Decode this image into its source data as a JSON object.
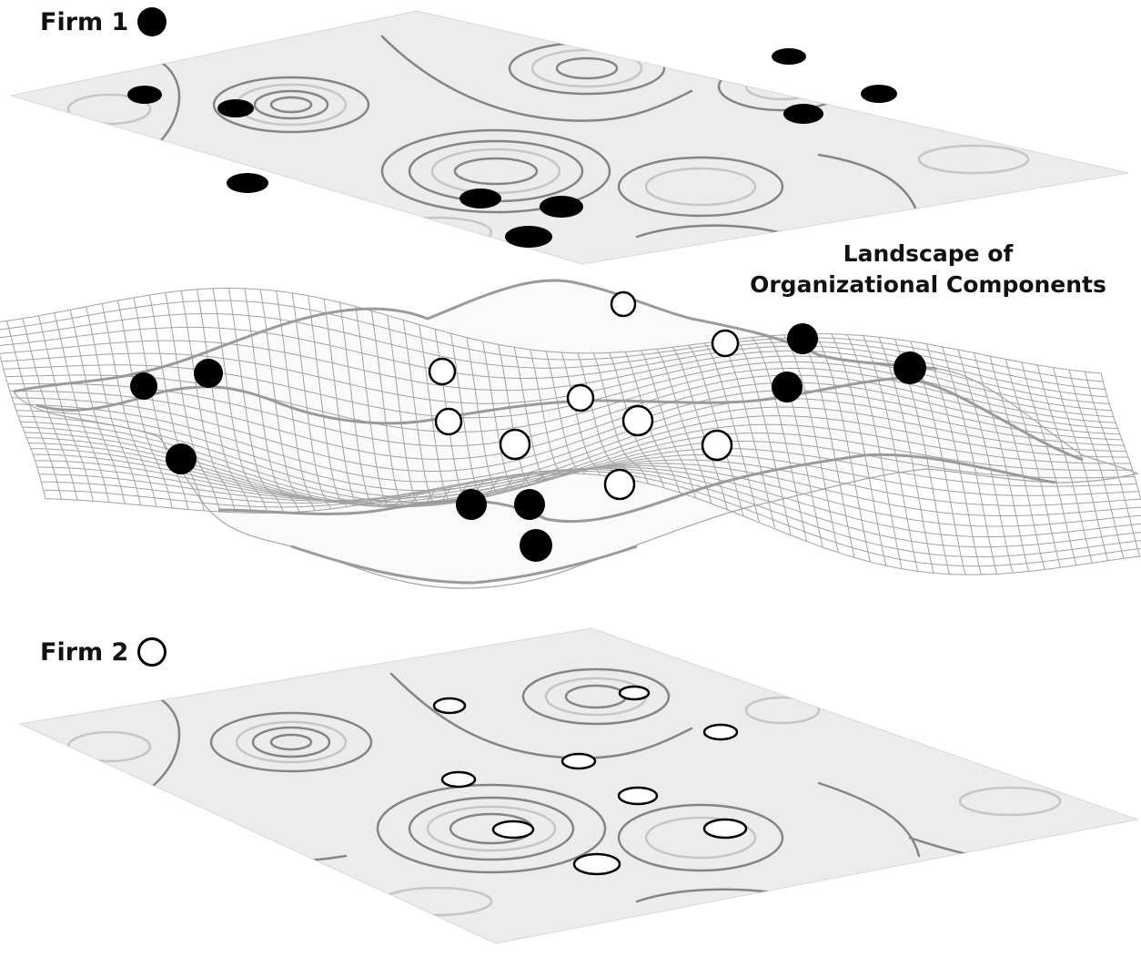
{
  "firm1": {
    "label": "Firm 1",
    "marker": "filled-circle",
    "color": "#000000"
  },
  "firm2": {
    "label": "Firm 2",
    "marker": "hollow-circle",
    "color": "#ffffff"
  },
  "landscape": {
    "title_line1": "Landscape of",
    "title_line2": "Organizational Components"
  },
  "colors": {
    "plane_fill": "#ececec",
    "contour_dark": "#7a7a7a",
    "contour_light": "#c8c8c8",
    "mesh": "#9a9a9a"
  }
}
